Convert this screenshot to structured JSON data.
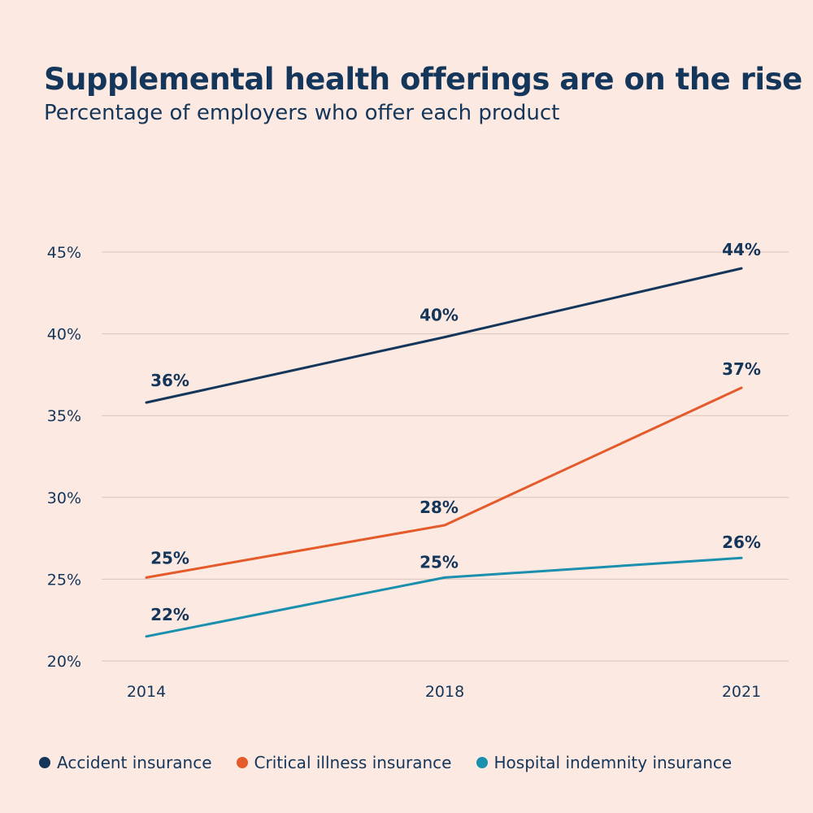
{
  "chart_data": {
    "type": "line",
    "title": "Supplemental health offerings are on the rise",
    "subtitle": "Percentage of employers who offer each product",
    "x": [
      "2014",
      "2018",
      "2021"
    ],
    "ylim": [
      20,
      45
    ],
    "yticks": [
      20,
      25,
      30,
      35,
      40,
      45
    ],
    "ytick_labels": [
      "20%",
      "25%",
      "30%",
      "35%",
      "40%",
      "45%"
    ],
    "grid": true,
    "legend_position": "bottom",
    "series": [
      {
        "name": "Accident insurance",
        "color": "#14365a",
        "values": [
          35.8,
          39.8,
          44.0
        ],
        "labels": [
          "36%",
          "40%",
          "44%"
        ]
      },
      {
        "name": "Critical illness insurance",
        "color": "#e55a2b",
        "values": [
          25.1,
          28.3,
          36.7
        ],
        "labels": [
          "25%",
          "28%",
          "37%"
        ]
      },
      {
        "name": "Hospital indemnity insurance",
        "color": "#1a8fae",
        "values": [
          21.5,
          25.1,
          26.3
        ],
        "labels": [
          "22%",
          "25%",
          "26%"
        ]
      }
    ]
  }
}
